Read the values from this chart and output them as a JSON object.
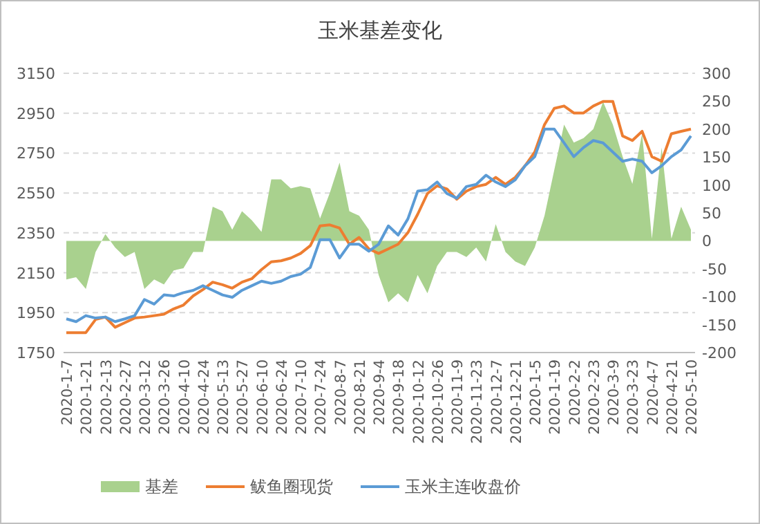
{
  "chart_data": {
    "type": "line",
    "title": "玉米基差变化",
    "categories": [
      "2020-1-7",
      null,
      "2020-1-21",
      null,
      "2020-2-13",
      null,
      "2020-2-27",
      null,
      "2020-3-12",
      null,
      "2020-3-26",
      null,
      "2020-4-10",
      null,
      "2020-4-24",
      null,
      "2020-5-13",
      null,
      "2020-5-27",
      null,
      "2020-6-10",
      null,
      "2020-6-24",
      null,
      "2020-7-10",
      null,
      "2020-7-24",
      null,
      "2020-8-7",
      null,
      "2020-8-21",
      null,
      "2020-9-4",
      null,
      "2020-9-18",
      null,
      "2020-10-12",
      null,
      "2020-10-26",
      null,
      "2020-11-9",
      null,
      "2020-11-23",
      null,
      "2020-12-7",
      null,
      "2020-12-21",
      null,
      "2020-1-5",
      null,
      "2020-1-19",
      null,
      "2020-2-2",
      null,
      "2020-2-23",
      null,
      "2020-3-9",
      null,
      "2020-3-23",
      null,
      "2020-4-7",
      null,
      "2020-4-21",
      null,
      "2020-5-10"
    ],
    "series": [
      {
        "name": "基差",
        "type": "area",
        "axis": "y2",
        "color": "#a9d18e",
        "values": [
          -69,
          -65,
          -86,
          -20,
          12,
          -12,
          -29,
          -20,
          -86,
          -69,
          -78,
          -53,
          -49,
          -20,
          -20,
          61,
          53,
          20,
          53,
          37,
          16,
          110,
          110,
          94,
          98,
          94,
          40,
          86,
          140,
          53,
          45,
          20,
          -61,
          -110,
          -94,
          -110,
          -61,
          -94,
          -45,
          -20,
          -20,
          -29,
          -12,
          -37,
          30,
          -20,
          -37,
          -45,
          -12,
          45,
          127,
          208,
          176,
          184,
          200,
          249,
          208,
          151,
          102,
          192,
          4,
          167,
          4,
          61,
          20
        ]
      },
      {
        "name": "鲅鱼圈现货",
        "color": "#ed7d31",
        "values": [
          1850,
          1850,
          1850,
          1916,
          1928,
          1877,
          1900,
          1923,
          1928,
          1935,
          1942,
          1969,
          1988,
          2034,
          2066,
          2103,
          2090,
          2073,
          2103,
          2120,
          2166,
          2205,
          2210,
          2224,
          2247,
          2286,
          2385,
          2390,
          2374,
          2293,
          2327,
          2270,
          2247,
          2270,
          2293,
          2351,
          2443,
          2547,
          2586,
          2570,
          2519,
          2559,
          2582,
          2593,
          2628,
          2593,
          2628,
          2686,
          2755,
          2893,
          2974,
          2986,
          2951,
          2951,
          2986,
          3009,
          3009,
          2836,
          2813,
          2859,
          2732,
          2709,
          2847,
          2859,
          2870
        ]
      },
      {
        "name": "玉米主连收盘价",
        "color": "#5b9bd5",
        "values": [
          1919,
          1905,
          1935,
          1923,
          1928,
          1905,
          1919,
          1935,
          2016,
          1993,
          2039,
          2034,
          2050,
          2062,
          2085,
          2062,
          2039,
          2027,
          2062,
          2085,
          2108,
          2097,
          2108,
          2131,
          2143,
          2177,
          2316,
          2316,
          2224,
          2293,
          2293,
          2258,
          2293,
          2385,
          2339,
          2420,
          2559,
          2566,
          2605,
          2547,
          2524,
          2582,
          2593,
          2639,
          2605,
          2582,
          2616,
          2686,
          2732,
          2870,
          2870,
          2801,
          2732,
          2778,
          2813,
          2801,
          2755,
          2709,
          2720,
          2709,
          2651,
          2686,
          2732,
          2766,
          2836
        ]
      }
    ],
    "ylim": [
      1750,
      3150
    ],
    "yticks": [
      1750,
      1950,
      2150,
      2350,
      2550,
      2750,
      2950,
      3150
    ],
    "y2lim": [
      -200,
      300
    ],
    "y2ticks": [
      -200,
      -150,
      -100,
      -50,
      0,
      50,
      100,
      150,
      200,
      250,
      300
    ],
    "grid": "y",
    "legend": "bottom"
  }
}
